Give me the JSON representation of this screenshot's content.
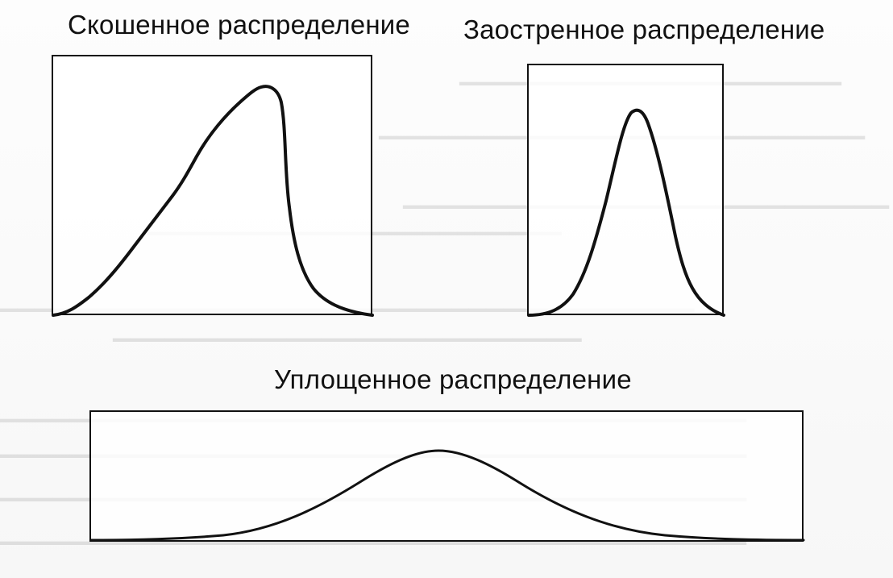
{
  "labels": {
    "skewed": "Скошенное распределение",
    "peaked": "Заостренное распределение",
    "flat": "Уплощенное распределение"
  },
  "colors": {
    "background": "#ffffff",
    "ink": "#111111"
  }
}
